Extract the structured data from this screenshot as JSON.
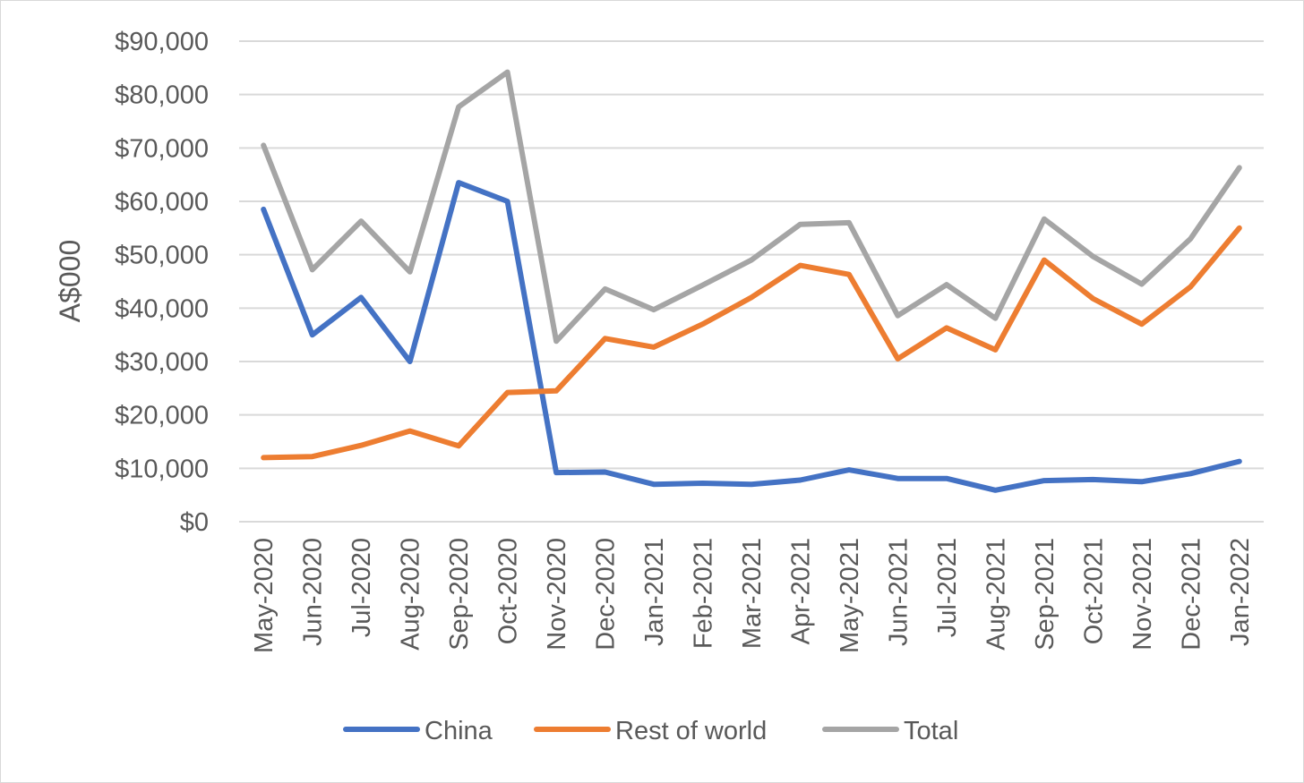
{
  "chart_data": {
    "type": "line",
    "title": "",
    "xlabel": "",
    "ylabel": "A$000",
    "ylim": [
      0,
      90000
    ],
    "y_ticks": [
      {
        "value": 0,
        "label": "$0"
      },
      {
        "value": 10000,
        "label": "$10,000"
      },
      {
        "value": 20000,
        "label": "$20,000"
      },
      {
        "value": 30000,
        "label": "$30,000"
      },
      {
        "value": 40000,
        "label": "$40,000"
      },
      {
        "value": 50000,
        "label": "$50,000"
      },
      {
        "value": 60000,
        "label": "$60,000"
      },
      {
        "value": 70000,
        "label": "$70,000"
      },
      {
        "value": 80000,
        "label": "$80,000"
      },
      {
        "value": 90000,
        "label": "$90,000"
      }
    ],
    "grid": "horizontal",
    "legend_position": "bottom",
    "categories": [
      "May-2020",
      "Jun-2020",
      "Jul-2020",
      "Aug-2020",
      "Sep-2020",
      "Oct-2020",
      "Nov-2020",
      "Dec-2020",
      "Jan-2021",
      "Feb-2021",
      "Mar-2021",
      "Apr-2021",
      "May-2021",
      "Jun-2021",
      "Jul-2021",
      "Aug-2021",
      "Sep-2021",
      "Oct-2021",
      "Nov-2021",
      "Dec-2021",
      "Jan-2022"
    ],
    "series": [
      {
        "name": "China",
        "color": "#4472C4",
        "values": [
          58500,
          35000,
          42000,
          30000,
          63500,
          60000,
          9200,
          9300,
          7000,
          7200,
          7000,
          7800,
          9700,
          8100,
          8100,
          5900,
          7700,
          7900,
          7500,
          9000,
          11300
        ]
      },
      {
        "name": "Rest of world",
        "color": "#ED7D31",
        "values": [
          12000,
          12200,
          14300,
          17000,
          14200,
          24200,
          24500,
          34300,
          32700,
          37000,
          42000,
          48000,
          46300,
          30500,
          36300,
          32200,
          49000,
          41800,
          37000,
          44000,
          55000
        ]
      },
      {
        "name": "Total",
        "color": "#A5A5A5",
        "values": [
          70500,
          47200,
          56300,
          46800,
          77700,
          84200,
          33800,
          43600,
          39700,
          44300,
          49000,
          55700,
          56000,
          38600,
          44400,
          38100,
          56700,
          49700,
          44500,
          53000,
          66300
        ]
      }
    ]
  }
}
